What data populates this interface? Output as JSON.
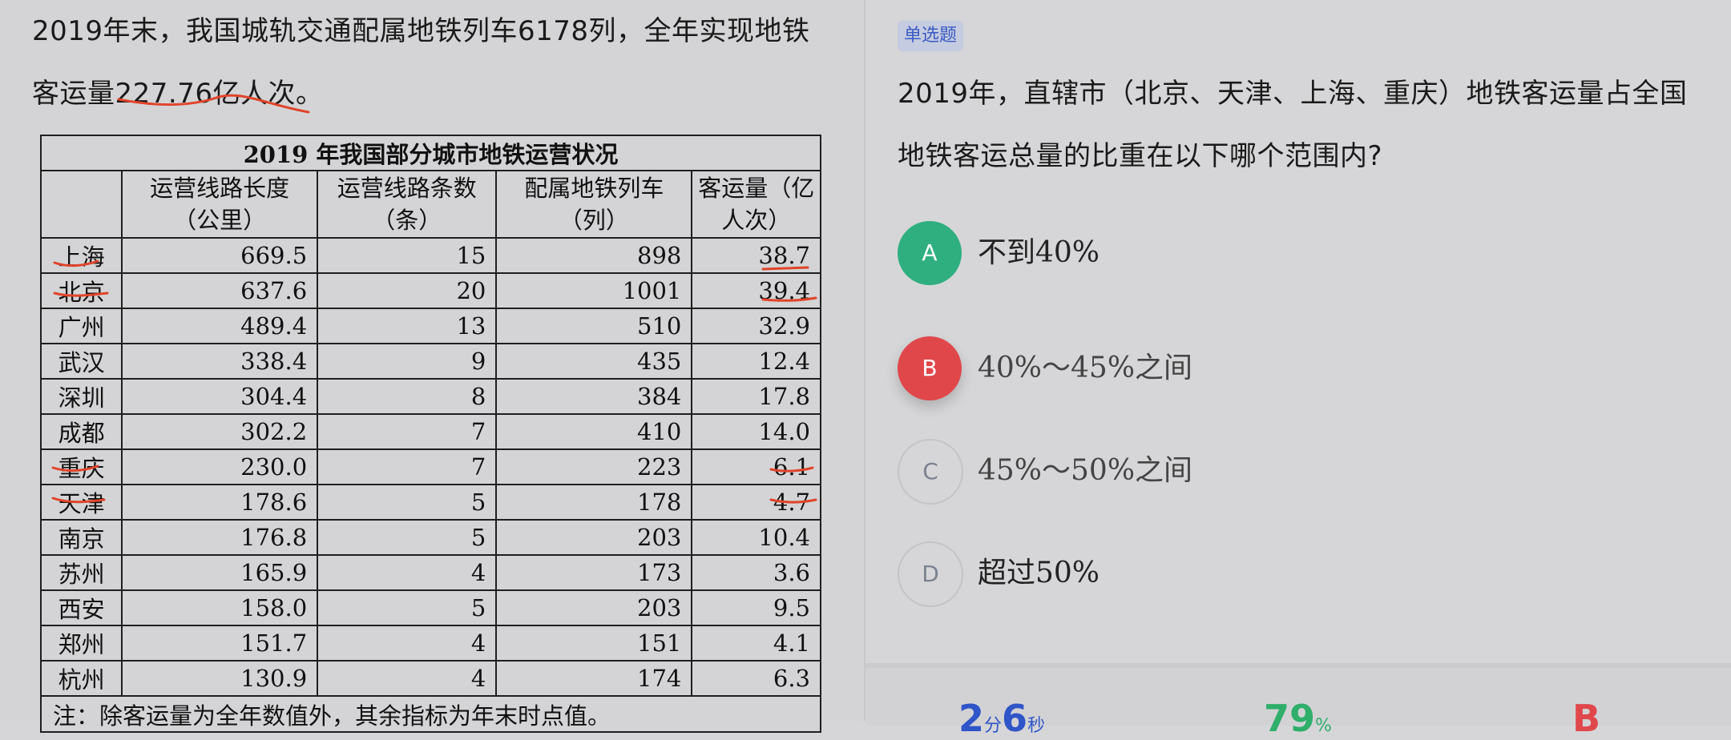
{
  "passage": {
    "line1": "2019年末，我国城轨交通配属地铁列车6178列，全年实现地铁",
    "line2_prefix": "客运量",
    "line2_highlight": "227.76亿人次",
    "line2_suffix": "。"
  },
  "table": {
    "title": "2019 年我国部分城市地铁运营状况",
    "headers": [
      "运营线路长度（公里）",
      "运营线路条数（条）",
      "配属地铁列车（列）",
      "客运量（亿人次）"
    ],
    "rows": [
      {
        "city": "上海",
        "length": "669.5",
        "lines": "15",
        "trains": "898",
        "ridership": "38.7"
      },
      {
        "city": "北京",
        "length": "637.6",
        "lines": "20",
        "trains": "1001",
        "ridership": "39.4"
      },
      {
        "city": "广州",
        "length": "489.4",
        "lines": "13",
        "trains": "510",
        "ridership": "32.9"
      },
      {
        "city": "武汉",
        "length": "338.4",
        "lines": "9",
        "trains": "435",
        "ridership": "12.4"
      },
      {
        "city": "深圳",
        "length": "304.4",
        "lines": "8",
        "trains": "384",
        "ridership": "17.8"
      },
      {
        "city": "成都",
        "length": "302.2",
        "lines": "7",
        "trains": "410",
        "ridership": "14.0"
      },
      {
        "city": "重庆",
        "length": "230.0",
        "lines": "7",
        "trains": "223",
        "ridership": "6.1"
      },
      {
        "city": "天津",
        "length": "178.6",
        "lines": "5",
        "trains": "178",
        "ridership": "4.7"
      },
      {
        "city": "南京",
        "length": "176.8",
        "lines": "5",
        "trains": "203",
        "ridership": "10.4"
      },
      {
        "city": "苏州",
        "length": "165.9",
        "lines": "4",
        "trains": "173",
        "ridership": "3.6"
      },
      {
        "city": "西安",
        "length": "158.0",
        "lines": "5",
        "trains": "203",
        "ridership": "9.5"
      },
      {
        "city": "郑州",
        "length": "151.7",
        "lines": "4",
        "trains": "151",
        "ridership": "4.1"
      },
      {
        "city": "杭州",
        "length": "130.9",
        "lines": "4",
        "trains": "174",
        "ridership": "6.3"
      }
    ],
    "note": "注：除客运量为全年数值外，其余指标为年末时点值。"
  },
  "question": {
    "type": "单选题",
    "text": "2019年，直辖市（北京、天津、上海、重庆）地铁客运量占全国地铁客运总量的比重在以下哪个范围内?",
    "options": [
      {
        "letter": "A",
        "text": "不到40%",
        "state": "correct"
      },
      {
        "letter": "B",
        "text": "40%～45%之间",
        "state": "selected-wrong"
      },
      {
        "letter": "C",
        "text": "45%～50%之间",
        "state": "normal"
      },
      {
        "letter": "D",
        "text": "超过50%",
        "state": "normal"
      }
    ]
  },
  "stats": {
    "time_min": "2",
    "time_min_unit": "分",
    "time_sec": "6",
    "time_sec_unit": "秒",
    "accuracy": "79",
    "accuracy_unit": "%",
    "answer": "B"
  },
  "colors": {
    "correct": "#2faf7f",
    "wrong": "#e0474b",
    "accent_blue": "#2f55c8",
    "annotation_red": "#e0442b"
  }
}
